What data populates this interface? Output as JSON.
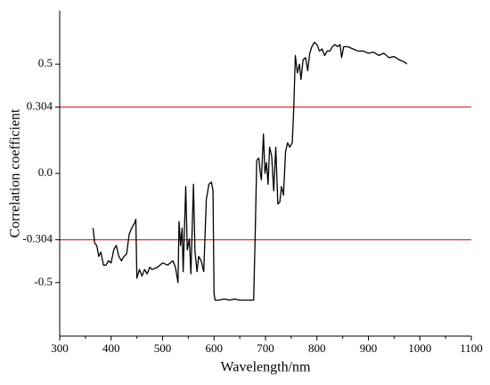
{
  "chart_data": {
    "type": "line",
    "xlabel": "Wavelength/nm",
    "ylabel": "Correlation coefficient",
    "x": [
      365,
      368,
      372,
      376,
      380,
      385,
      390,
      395,
      400,
      405,
      410,
      415,
      420,
      425,
      430,
      435,
      440,
      445,
      448,
      450,
      455,
      460,
      465,
      470,
      475,
      480,
      490,
      500,
      510,
      520,
      525,
      530,
      532,
      535,
      538,
      540,
      545,
      548,
      552,
      555,
      560,
      563,
      567,
      570,
      575,
      580,
      585,
      590,
      595,
      598,
      600,
      602,
      610,
      620,
      630,
      640,
      650,
      660,
      670,
      677,
      680,
      683,
      687,
      690,
      692,
      696,
      699,
      702,
      705,
      708,
      712,
      716,
      720,
      724,
      728,
      731,
      735,
      739,
      743,
      747,
      752,
      755,
      758,
      762,
      766,
      769,
      773,
      778,
      782,
      786,
      790,
      795,
      800,
      805,
      810,
      815,
      820,
      825,
      830,
      835,
      840,
      845,
      848,
      852,
      860,
      870,
      880,
      890,
      900,
      910,
      920,
      930,
      940,
      950,
      960,
      970,
      975
    ],
    "series": [
      {
        "color": "#000000",
        "values": [
          -0.25,
          -0.32,
          -0.33,
          -0.38,
          -0.36,
          -0.42,
          -0.42,
          -0.4,
          -0.41,
          -0.35,
          -0.33,
          -0.38,
          -0.4,
          -0.38,
          -0.37,
          -0.28,
          -0.25,
          -0.23,
          -0.21,
          -0.48,
          -0.44,
          -0.47,
          -0.44,
          -0.46,
          -0.43,
          -0.44,
          -0.43,
          -0.41,
          -0.42,
          -0.4,
          -0.43,
          -0.5,
          -0.22,
          -0.33,
          -0.25,
          -0.45,
          -0.06,
          -0.35,
          -0.3,
          -0.46,
          -0.05,
          -0.36,
          -0.45,
          -0.38,
          -0.4,
          -0.45,
          -0.12,
          -0.05,
          -0.04,
          -0.08,
          -0.55,
          -0.58,
          -0.58,
          -0.575,
          -0.58,
          -0.575,
          -0.58,
          -0.58,
          -0.58,
          -0.58,
          -0.28,
          0.06,
          0.07,
          0.0,
          -0.03,
          0.18,
          0.0,
          0.05,
          -0.05,
          0.12,
          0.08,
          -0.08,
          0.12,
          -0.14,
          -0.13,
          -0.06,
          -0.1,
          0.1,
          0.14,
          0.12,
          0.14,
          0.3,
          0.54,
          0.46,
          0.5,
          0.43,
          0.52,
          0.53,
          0.47,
          0.55,
          0.58,
          0.6,
          0.59,
          0.56,
          0.57,
          0.54,
          0.56,
          0.56,
          0.58,
          0.59,
          0.58,
          0.59,
          0.53,
          0.58,
          0.58,
          0.57,
          0.56,
          0.56,
          0.55,
          0.555,
          0.54,
          0.55,
          0.53,
          0.535,
          0.52,
          0.51,
          0.5
        ]
      }
    ],
    "xlim": [
      300,
      1100
    ],
    "xticks": [
      300,
      400,
      500,
      600,
      700,
      800,
      900,
      1000,
      1100
    ],
    "ylim": [
      -0.745,
      0.745
    ],
    "yticks": [
      -0.5,
      -0.304,
      {
        "value": 0,
        "label": "0.0"
      },
      0.304,
      0.5
    ],
    "hlines": [
      0.304,
      -0.304
    ],
    "hline_color": "#e8141b"
  }
}
